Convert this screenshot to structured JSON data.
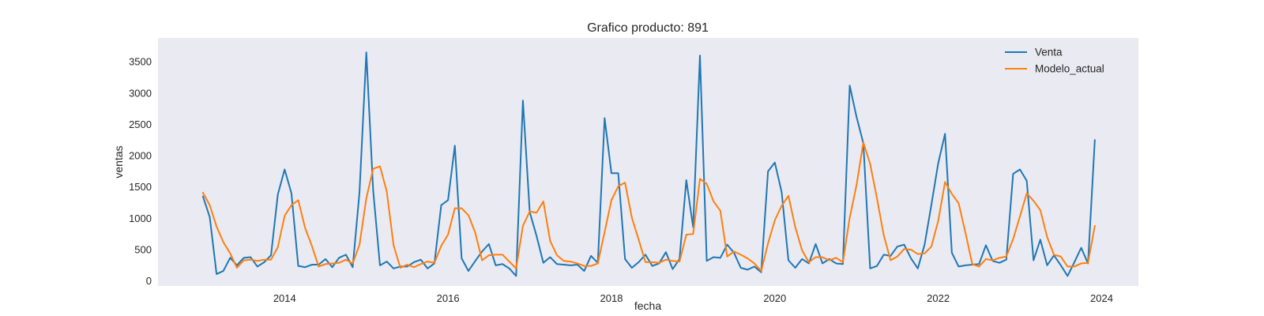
{
  "chart_data": {
    "type": "line",
    "title": "Grafico producto: 891",
    "xlabel": "fecha",
    "ylabel": "ventas",
    "xlim": [
      2012.45,
      2024.45
    ],
    "ylim": [
      -80,
      3880
    ],
    "xticks": [
      2014,
      2016,
      2018,
      2020,
      2022,
      2024
    ],
    "xtick_labels": [
      "2014",
      "2016",
      "2018",
      "2020",
      "2022",
      "2024"
    ],
    "yticks": [
      0,
      500,
      1000,
      1500,
      2000,
      2500,
      3000,
      3500
    ],
    "ytick_labels": [
      "0",
      "500",
      "1000",
      "1500",
      "2000",
      "2500",
      "3000",
      "3500"
    ],
    "grid": false,
    "legend_position": "top-right",
    "start_year": 2013,
    "points_per_year": 12,
    "series": [
      {
        "name": "Venta",
        "color": "#1f77b4",
        "values": [
          1350,
          1020,
          110,
          160,
          370,
          250,
          370,
          380,
          230,
          300,
          410,
          1380,
          1780,
          1400,
          240,
          220,
          260,
          260,
          350,
          220,
          370,
          420,
          220,
          1420,
          3650,
          1450,
          250,
          310,
          200,
          230,
          230,
          300,
          340,
          200,
          280,
          1210,
          1290,
          2160,
          360,
          160,
          320,
          470,
          590,
          250,
          270,
          200,
          80,
          2880,
          1100,
          720,
          290,
          380,
          270,
          260,
          250,
          260,
          160,
          400,
          290,
          2600,
          1720,
          1720,
          350,
          210,
          300,
          420,
          240,
          280,
          460,
          190,
          350,
          1610,
          860,
          3600,
          320,
          380,
          370,
          580,
          450,
          210,
          180,
          230,
          140,
          1750,
          1890,
          1420,
          330,
          210,
          350,
          280,
          590,
          280,
          350,
          280,
          270,
          3120,
          2620,
          2200,
          200,
          240,
          420,
          400,
          550,
          580,
          360,
          200,
          580,
          1220,
          1880,
          2350,
          450,
          230,
          250,
          260,
          270,
          570,
          320,
          290,
          340,
          1710,
          1780,
          1600,
          330,
          660,
          250,
          410,
          250,
          80,
          300,
          530,
          280,
          2250
        ]
      },
      {
        "name": "Modelo_actual",
        "color": "#ff7f0e",
        "values": [
          1410,
          1210,
          870,
          620,
          440,
          210,
          330,
          340,
          320,
          340,
          340,
          540,
          1040,
          1210,
          1290,
          850,
          560,
          230,
          270,
          280,
          290,
          340,
          280,
          580,
          1320,
          1790,
          1830,
          1430,
          570,
          210,
          260,
          220,
          270,
          310,
          290,
          560,
          740,
          1160,
          1160,
          1050,
          770,
          330,
          410,
          420,
          420,
          310,
          200,
          880,
          1110,
          1090,
          1270,
          640,
          410,
          320,
          310,
          280,
          240,
          240,
          280,
          780,
          1290,
          1510,
          1570,
          1010,
          660,
          300,
          300,
          290,
          340,
          320,
          310,
          740,
          750,
          1630,
          1550,
          1270,
          1120,
          390,
          470,
          420,
          360,
          280,
          160,
          600,
          970,
          1200,
          1360,
          860,
          490,
          300,
          380,
          380,
          330,
          370,
          300,
          1010,
          1530,
          2210,
          1870,
          1320,
          730,
          330,
          390,
          510,
          500,
          430,
          440,
          550,
          960,
          1580,
          1390,
          1240,
          770,
          270,
          230,
          350,
          330,
          370,
          390,
          670,
          1030,
          1400,
          1280,
          1130,
          700,
          420,
          390,
          230,
          230,
          280,
          290,
          880
        ]
      }
    ]
  }
}
